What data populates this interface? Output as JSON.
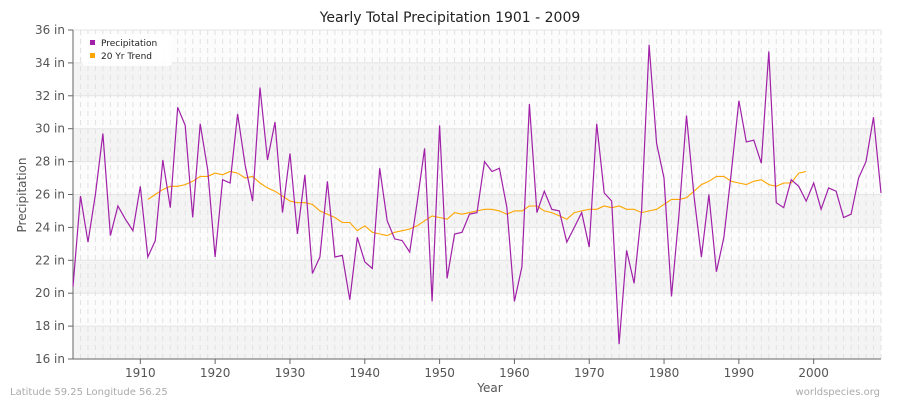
{
  "chart_data": {
    "type": "line",
    "title": "Yearly Total Precipitation 1901 - 2009",
    "xlabel": "Year",
    "ylabel": "Precipitation",
    "xlim": [
      1901,
      2009
    ],
    "ylim": [
      16,
      36
    ],
    "y_ticks": [
      16,
      18,
      20,
      22,
      24,
      26,
      28,
      30,
      32,
      34,
      36
    ],
    "y_tick_labels": [
      "16 in",
      "18 in",
      "20 in",
      "22 in",
      "24 in",
      "26 in",
      "28 in",
      "30 in",
      "32 in",
      "34 in",
      "36 in"
    ],
    "x_ticks": [
      1910,
      1920,
      1930,
      1940,
      1950,
      1960,
      1970,
      1980,
      1990,
      2000
    ],
    "x_tick_labels": [
      "1910",
      "1920",
      "1930",
      "1940",
      "1950",
      "1960",
      "1970",
      "1980",
      "1990",
      "2000"
    ],
    "grid": true,
    "legend_position": "top-left",
    "series": [
      {
        "name": "Precipitation",
        "color": "#a020a8",
        "start_year": 1901,
        "values": [
          20.4,
          25.9,
          23.1,
          26.0,
          29.7,
          23.5,
          25.3,
          24.5,
          23.8,
          26.5,
          22.2,
          23.2,
          28.1,
          25.2,
          31.3,
          30.2,
          24.6,
          30.3,
          27.5,
          22.2,
          26.9,
          26.7,
          30.9,
          27.8,
          25.6,
          32.5,
          28.1,
          30.4,
          24.9,
          28.5,
          23.6,
          27.2,
          21.2,
          22.2,
          26.8,
          22.2,
          22.3,
          19.6,
          23.4,
          21.9,
          21.5,
          27.6,
          24.4,
          23.3,
          23.2,
          22.5,
          25.5,
          28.8,
          19.5,
          30.2,
          20.9,
          23.6,
          23.7,
          24.8,
          24.9,
          28.0,
          27.4,
          27.6,
          25.2,
          19.5,
          21.6,
          31.5,
          24.9,
          26.2,
          25.1,
          25.0,
          23.1,
          24.0,
          24.9,
          22.8,
          30.3,
          26.1,
          25.6,
          16.9,
          22.6,
          20.6,
          25.0,
          35.1,
          29.1,
          27.0,
          19.8,
          24.8,
          30.8,
          25.9,
          22.2,
          26.0,
          21.3,
          23.4,
          27.4,
          31.7,
          29.2,
          29.3,
          27.9,
          34.7,
          25.5,
          25.2,
          26.9,
          26.5,
          25.6,
          26.7,
          25.1,
          26.4,
          26.2,
          24.6,
          24.8,
          27.0,
          28.0,
          30.7,
          26.1
        ]
      },
      {
        "name": "20 Yr Trend",
        "color": "#ffa500",
        "start_year": 1911,
        "values": [
          25.7,
          26.0,
          26.3,
          26.5,
          26.5,
          26.6,
          26.8,
          27.1,
          27.1,
          27.3,
          27.2,
          27.4,
          27.3,
          27.0,
          27.1,
          26.7,
          26.4,
          26.2,
          25.9,
          25.6,
          25.5,
          25.5,
          25.4,
          25.0,
          24.8,
          24.6,
          24.3,
          24.3,
          23.8,
          24.1,
          23.7,
          23.6,
          23.5,
          23.7,
          23.8,
          23.9,
          24.1,
          24.4,
          24.7,
          24.6,
          24.5,
          24.9,
          24.8,
          24.9,
          25.0,
          25.1,
          25.1,
          25.0,
          24.8,
          25.0,
          25.0,
          25.3,
          25.3,
          25.0,
          24.9,
          24.7,
          24.5,
          24.9,
          25.0,
          25.1,
          25.1,
          25.3,
          25.2,
          25.3,
          25.1,
          25.1,
          24.9,
          25.0,
          25.1,
          25.4,
          25.7,
          25.7,
          25.8,
          26.2,
          26.6,
          26.8,
          27.1,
          27.1,
          26.8,
          26.7,
          26.6,
          26.8,
          26.9,
          26.6,
          26.5,
          26.7,
          26.7,
          27.3,
          27.4
        ]
      }
    ]
  },
  "footer": {
    "location": "Latitude 59.25 Longitude 56.25",
    "site": "worldspecies.org"
  }
}
